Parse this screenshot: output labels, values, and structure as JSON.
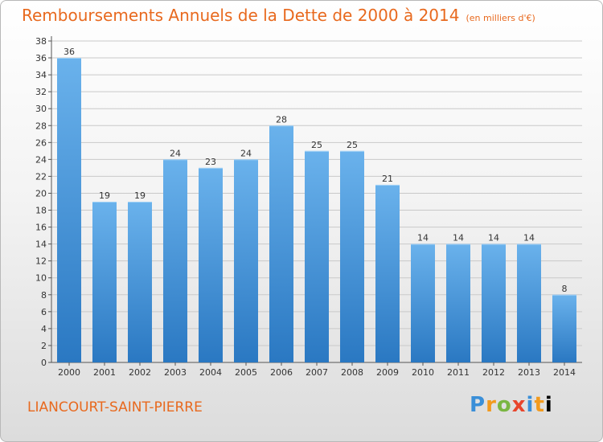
{
  "header": {
    "title": "Remboursements Annuels de la Dette de 2000 à 2014",
    "unit": "(en milliers d'€)"
  },
  "footer": {
    "commune": "LIANCOURT-SAINT-PIERRE",
    "logo": [
      "P",
      "r",
      "o",
      "x",
      "i",
      "t",
      "i"
    ]
  },
  "colors": {
    "title": "#e8691e",
    "bar_light": "#6ab2ec",
    "bar_dark": "#2a78c2",
    "grid": "#c9c9c9"
  },
  "chart_data": {
    "type": "bar",
    "categories": [
      "2000",
      "2001",
      "2002",
      "2003",
      "2004",
      "2005",
      "2006",
      "2007",
      "2008",
      "2009",
      "2010",
      "2011",
      "2012",
      "2013",
      "2014"
    ],
    "values": [
      36,
      19,
      19,
      24,
      23,
      24,
      28,
      25,
      25,
      21,
      14,
      14,
      14,
      14,
      8
    ],
    "title": "Remboursements Annuels de la Dette de 2000 à 2014",
    "xlabel": "",
    "ylabel": "",
    "ylim": [
      0,
      38
    ],
    "ytick_step": 2,
    "grid": true,
    "legend": false
  }
}
